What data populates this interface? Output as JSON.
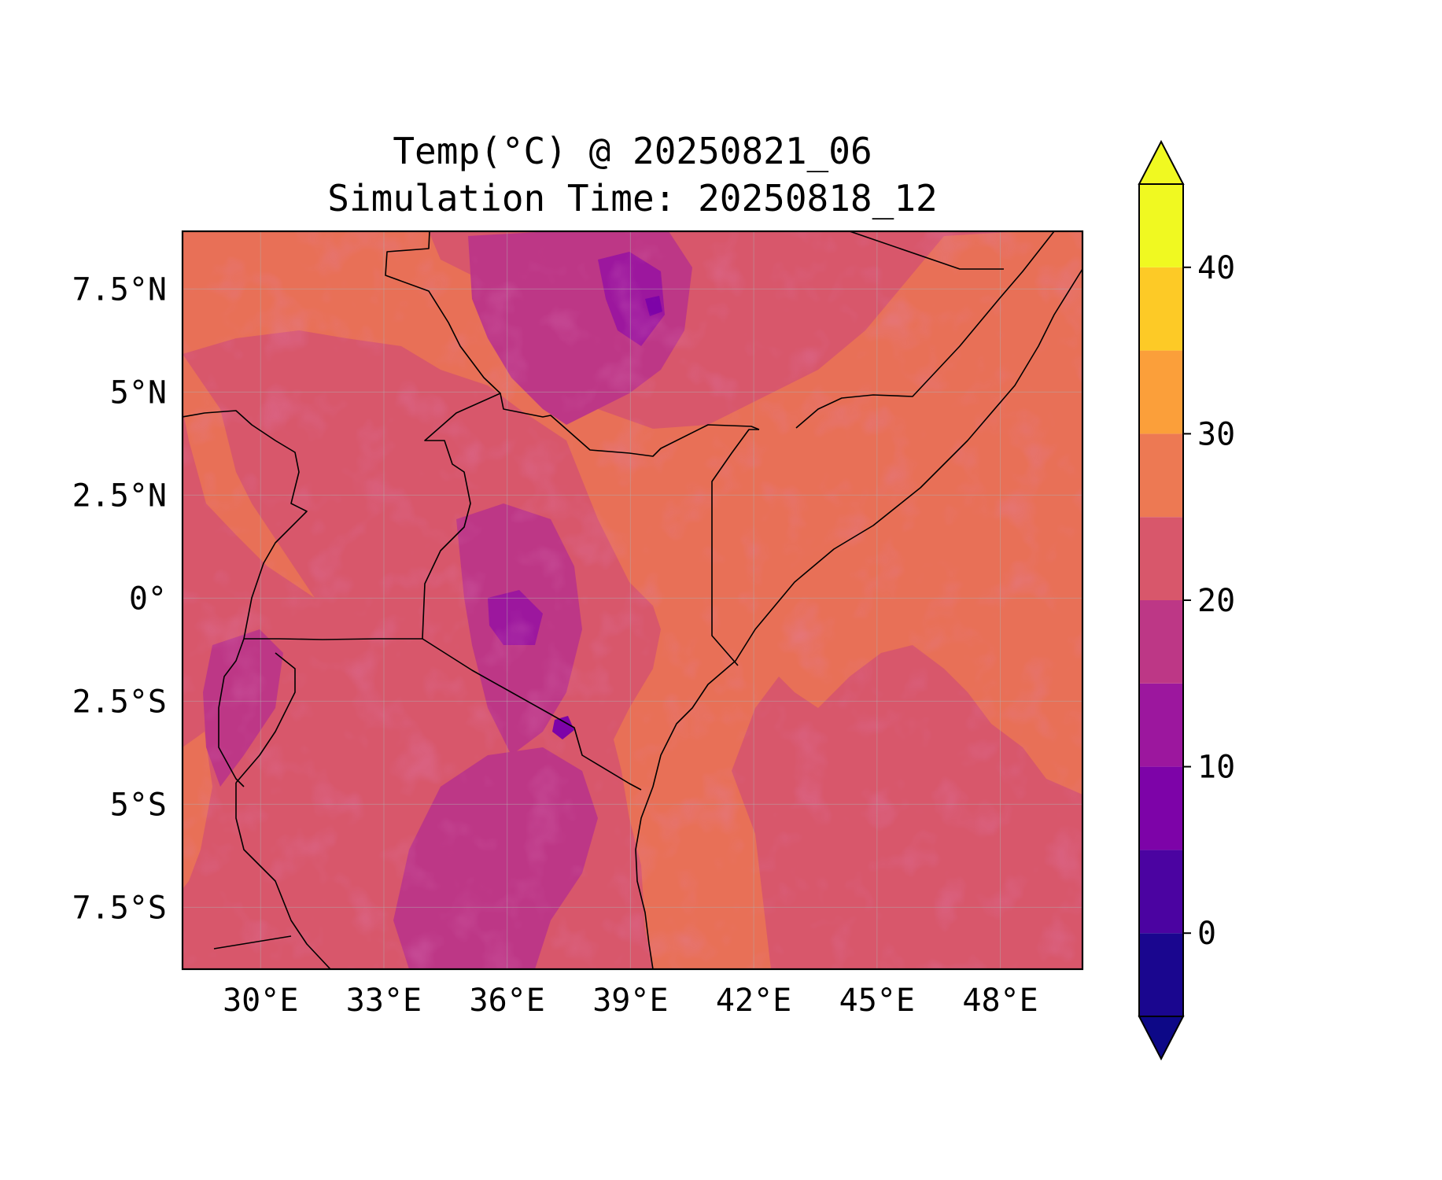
{
  "figure": {
    "title_line1": "Temp(°C) @ 20250821_06",
    "title_line2": "Simulation Time: 20250818_12"
  },
  "map": {
    "lat_ticks": [
      {
        "value": 7.5,
        "label": "7.5°N"
      },
      {
        "value": 5,
        "label": "5°N"
      },
      {
        "value": 2.5,
        "label": "2.5°N"
      },
      {
        "value": 0,
        "label": "0°"
      },
      {
        "value": -2.5,
        "label": "2.5°S"
      },
      {
        "value": -5,
        "label": "5°S"
      },
      {
        "value": -7.5,
        "label": "7.5°S"
      }
    ],
    "lon_ticks": [
      {
        "value": 30,
        "label": "30°E"
      },
      {
        "value": 33,
        "label": "33°E"
      },
      {
        "value": 36,
        "label": "36°E"
      },
      {
        "value": 39,
        "label": "39°E"
      },
      {
        "value": 42,
        "label": "42°E"
      },
      {
        "value": 45,
        "label": "45°E"
      },
      {
        "value": 48,
        "label": "48°E"
      }
    ],
    "extent": {
      "lon_min": 28.1,
      "lon_max": 50.0,
      "lat_min": -9.0,
      "lat_max": 8.9
    },
    "grid": true,
    "borders_color": "#000000"
  },
  "colorbar": {
    "levels": [
      -5,
      0,
      5,
      10,
      15,
      20,
      25,
      30,
      35,
      40,
      45
    ],
    "colors": [
      "#1a068f",
      "#4b03a1",
      "#7d03a8",
      "#a82296",
      "#cb4679",
      "#e66c5c",
      "#f89540",
      "#fdc328",
      "#f0f921",
      "#f7e225"
    ],
    "band_colors": [
      "#1a068f",
      "#4b03a1",
      "#7d03a8",
      "#9c179e",
      "#bd3786",
      "#d8576b",
      "#ed7953",
      "#fb9f3a",
      "#fdca26",
      "#f0f921"
    ],
    "under_color": "#0d0887",
    "over_color": "#f0f921",
    "ticks": [
      {
        "value": 0,
        "label": "0"
      },
      {
        "value": 10,
        "label": "10"
      },
      {
        "value": 20,
        "label": "20"
      },
      {
        "value": 30,
        "label": "30"
      },
      {
        "value": 40,
        "label": "40"
      }
    ],
    "extend": "both"
  }
}
